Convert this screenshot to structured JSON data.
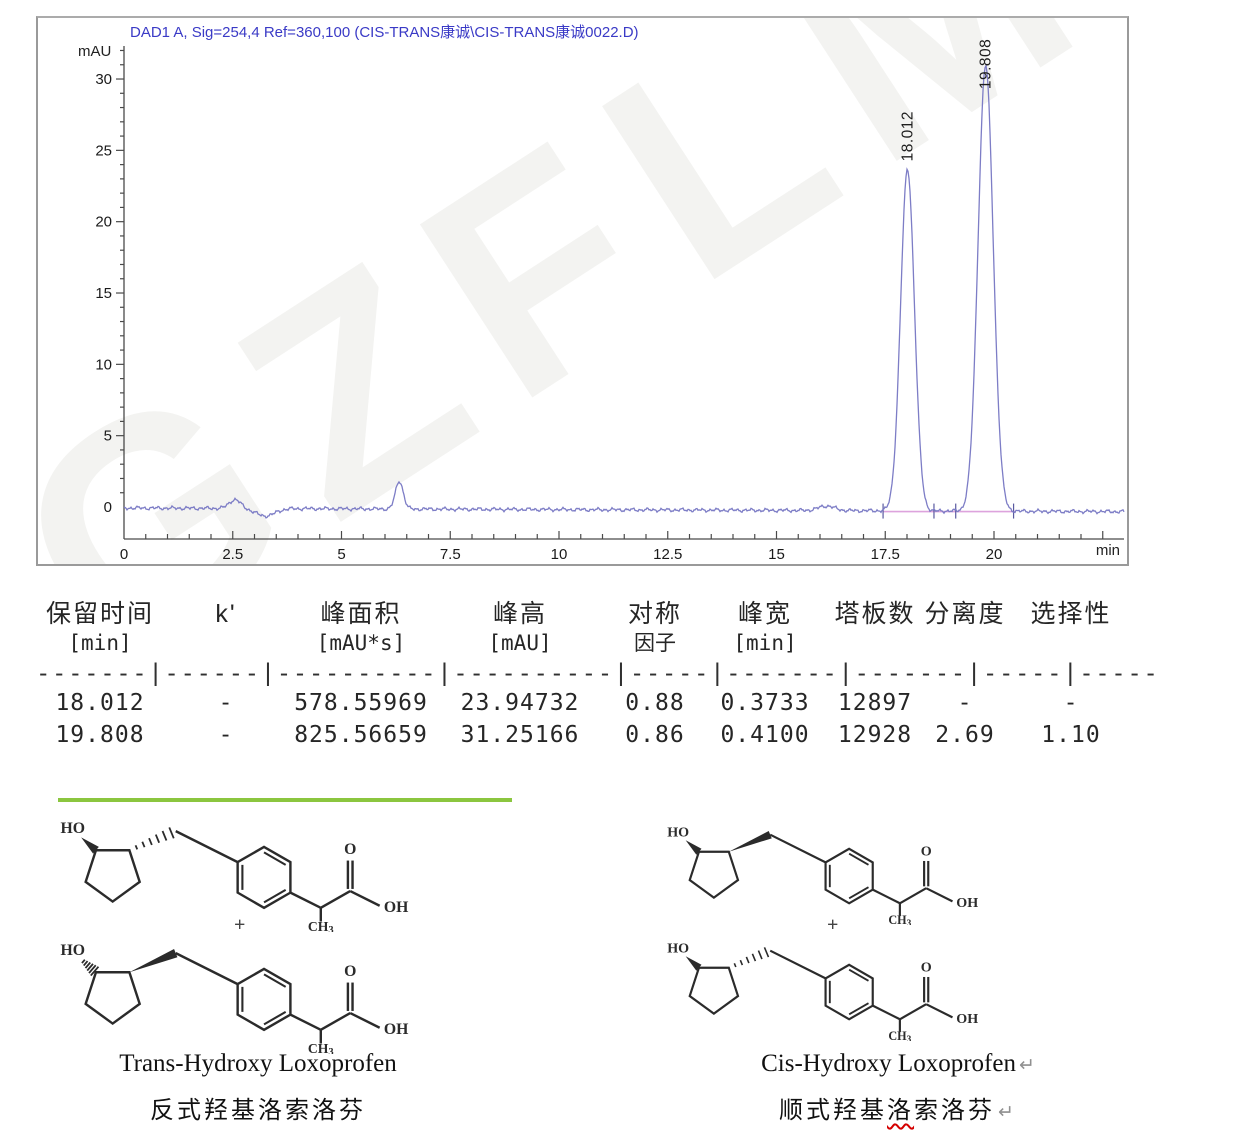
{
  "watermark": {
    "text": "GZFLM"
  },
  "chromatogram": {
    "title": "DAD1 A, Sig=254,4 Ref=360,100 (CIS-TRANS康诚\\CIS-TRANS康诚0022.D)",
    "y_axis_label": "mAU",
    "x_axis_label": "min"
  },
  "chart_data": {
    "type": "line",
    "title": "DAD1 A, Sig=254,4 Ref=360,100 (CIS-TRANS康诚\\CIS-TRANS康诚0022.D)",
    "xlabel": "min",
    "ylabel": "mAU",
    "xlim": [
      0,
      23
    ],
    "ylim": [
      -2,
      33
    ],
    "x_ticks": [
      0,
      2.5,
      5,
      7.5,
      10,
      12.5,
      15,
      17.5,
      20
    ],
    "y_ticks": [
      0,
      5,
      10,
      15,
      20,
      25,
      30
    ],
    "grid": false,
    "trace_color": "#7d7dc6",
    "integration_color": "#dda3dd",
    "peaks": [
      {
        "rt": 18.012,
        "height": 23.94732,
        "width": 0.3733,
        "label": "18.012"
      },
      {
        "rt": 19.808,
        "height": 31.25166,
        "width": 0.41,
        "label": "19.808"
      }
    ],
    "minor_features": [
      {
        "rt": 2.55,
        "height": 0.62,
        "sigma": 0.13
      },
      {
        "rt": 3.25,
        "height": -0.52,
        "sigma": 0.22
      },
      {
        "rt": 6.33,
        "height": 1.95,
        "sigma": 0.09
      },
      {
        "rt": 16.15,
        "height": 0.32,
        "sigma": 0.18
      }
    ],
    "integration_baseline": {
      "from": 17.45,
      "to": 20.5,
      "level": -0.32,
      "tick_positions": [
        17.45,
        18.62,
        19.12,
        20.45
      ]
    }
  },
  "peak_table": {
    "columns": [
      {
        "l1": "保留时间",
        "l2": "[min]"
      },
      {
        "l1": "k'",
        "l2": ""
      },
      {
        "l1": "峰面积",
        "l2": "[mAU*s]"
      },
      {
        "l1": "峰高",
        "l2": "[mAU]"
      },
      {
        "l1": "对称",
        "l2": "因子"
      },
      {
        "l1": "峰宽",
        "l2": "[min]"
      },
      {
        "l1": "塔板数",
        "l2": ""
      },
      {
        "l1": "分离度",
        "l2": ""
      },
      {
        "l1": "选择性",
        "l2": ""
      }
    ],
    "separator": "-------|------|----------|----------|-----|-------|-------|-----|------",
    "rows": [
      [
        "18.012",
        "-",
        "578.55969",
        "23.94732",
        "0.88",
        "0.3733",
        "12897",
        "-",
        "-"
      ],
      [
        "19.808",
        "-",
        "825.56659",
        "31.25166",
        "0.86",
        "0.4100",
        "12928",
        "2.69",
        "1.10"
      ]
    ]
  },
  "structures": {
    "atom_labels": {
      "ho": "HO",
      "o": "O",
      "oh": "OH",
      "ch": "CH",
      "sub": "3",
      "plus": "+"
    },
    "left": {
      "name_en": "Trans-Hydroxy Loxoprofen",
      "name_cn": "反式羟基洛索洛芬",
      "molecules": [
        {
          "oh_bond": "bold",
          "chain_bond": "hash"
        },
        {
          "oh_bond": "hash",
          "chain_bond": "bold"
        }
      ]
    },
    "right": {
      "name_en": "Cis-Hydroxy Loxoprofen",
      "name_cn_parts": [
        "顺式羟基",
        "洛",
        "索洛芬"
      ],
      "return_mark": "↵",
      "molecules": [
        {
          "oh_bond": "bold",
          "chain_bond": "bold"
        },
        {
          "oh_bond": "bold",
          "chain_bond": "hash"
        }
      ]
    }
  }
}
